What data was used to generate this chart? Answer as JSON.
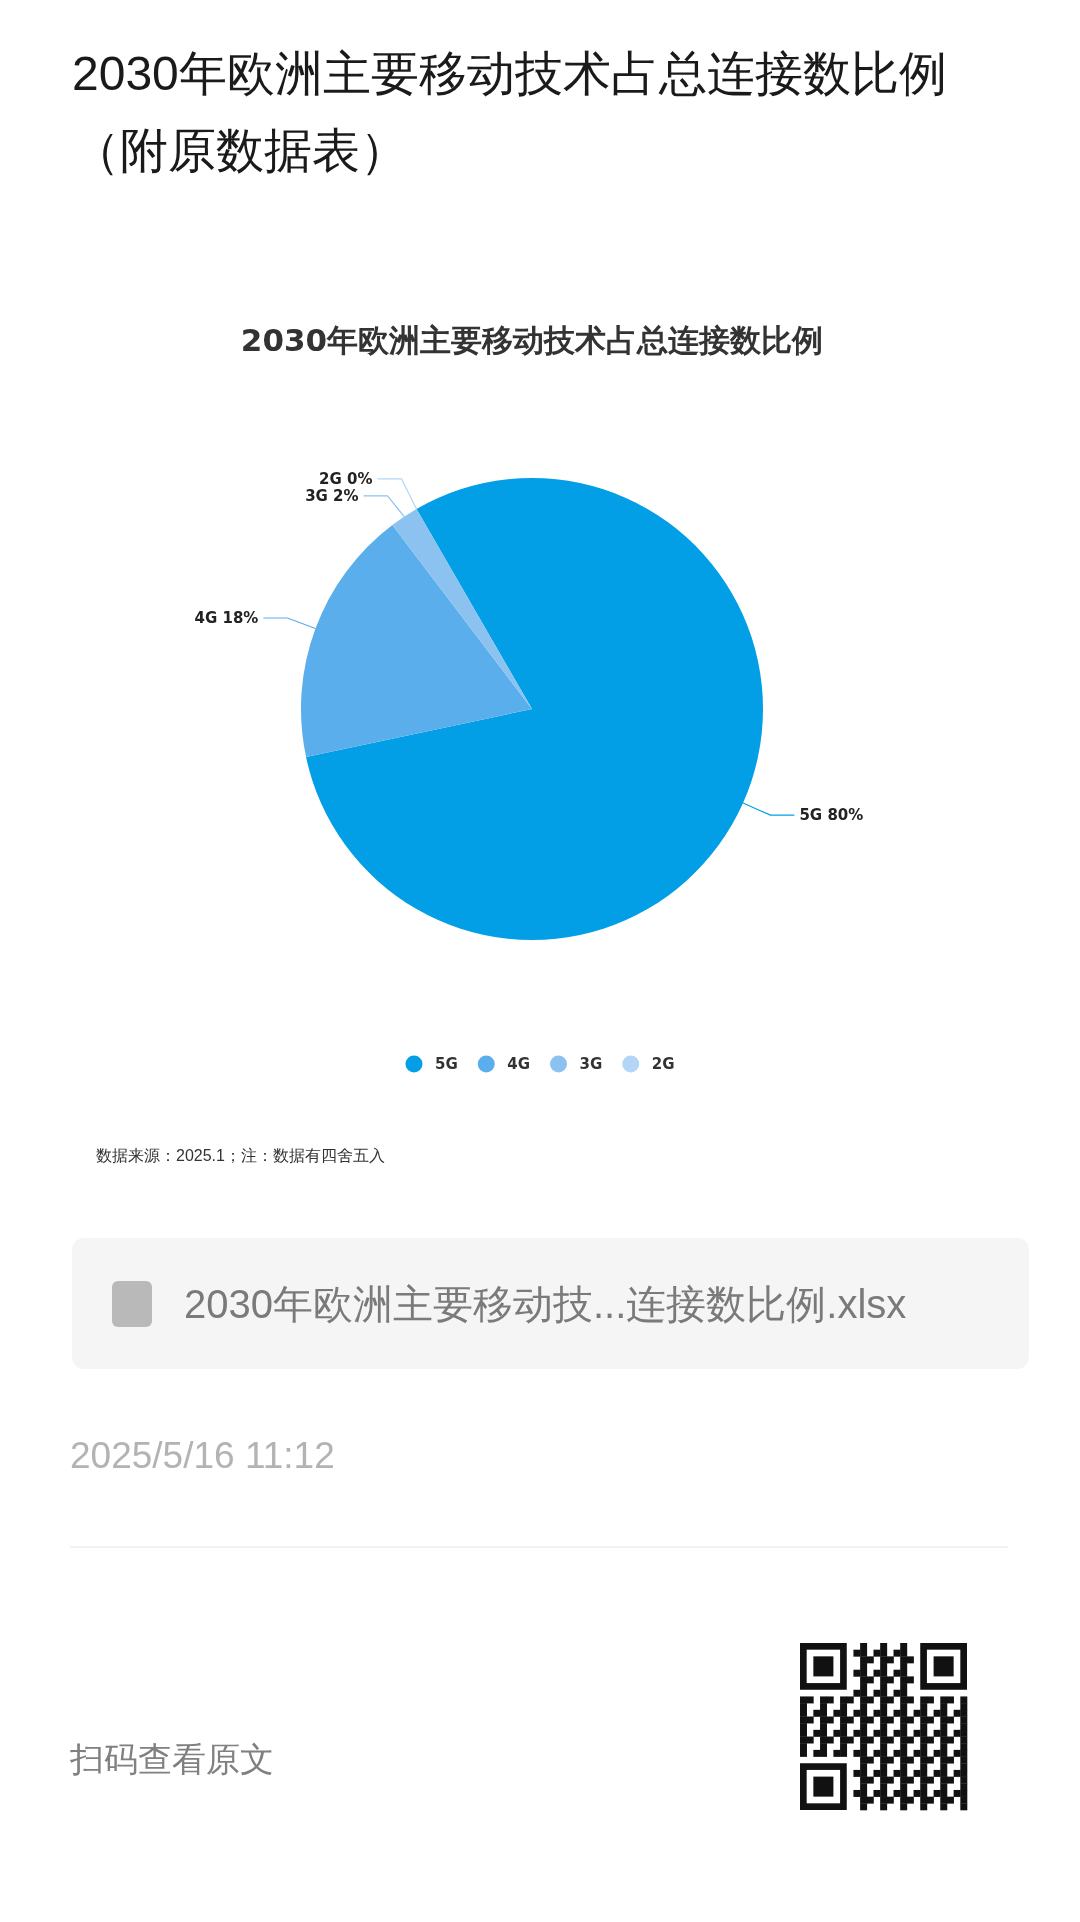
{
  "chart_data": {
    "type": "pie",
    "title": "2030年欧洲主要移动技术占总连接数比例（附原数据表）",
    "subtitle": "2030年欧洲主要移动技术占总连接数比例",
    "categories": [
      "5G",
      "4G",
      "3G",
      "2G"
    ],
    "values": [
      80,
      18,
      2,
      0
    ],
    "colors": [
      "#039fe6",
      "#5baeec",
      "#8bc2f0",
      "#b3d5f6"
    ],
    "value_labels": [
      "80%",
      "18%",
      "2%",
      "0%"
    ],
    "legend": "bottom",
    "annotations": [
      "数据来源：2025.1；注：数据有四舍五入",
      "2030年欧洲主要移动技...连接数比例.xlsx",
      "2025/5/16 11:12",
      "扫码查看原文"
    ]
  }
}
